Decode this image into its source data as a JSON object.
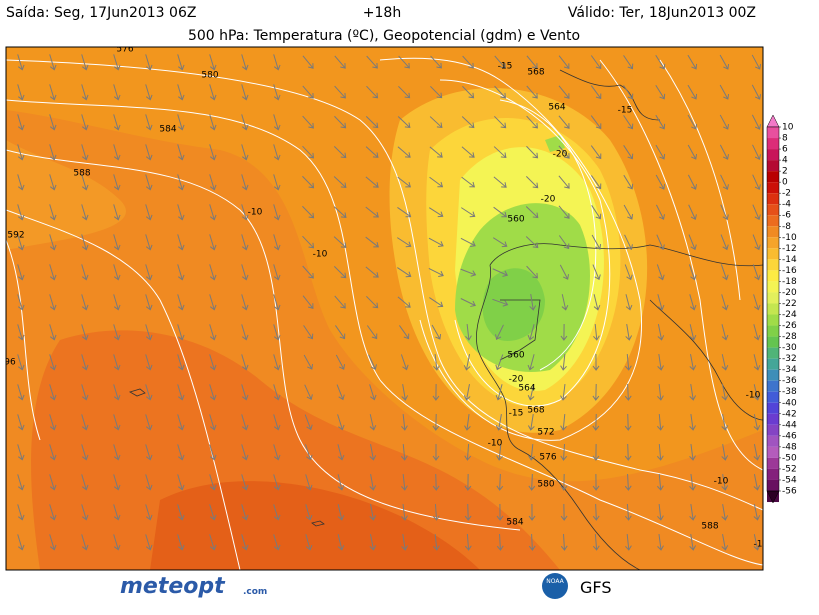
{
  "header": {
    "issued": "Saída: Seg, 17Jun2013 06Z",
    "lead": "+18h",
    "valid": "Válido: Ter, 18Jun2013 00Z",
    "title": "500 hPa: Temperatura (ºC), Geopotencial (gdm) e Vento"
  },
  "colorbar": {
    "labels": [
      10,
      8,
      6,
      4,
      2,
      0,
      -2,
      -4,
      -6,
      -8,
      -10,
      -12,
      -14,
      -16,
      -18,
      -20,
      -22,
      -24,
      -26,
      -28,
      -30,
      -32,
      -34,
      -36,
      -38,
      -40,
      -42,
      -44,
      -46,
      -48,
      -50,
      -52,
      -54,
      -56
    ],
    "colors": [
      "#f27ac8",
      "#e8509e",
      "#dc2c78",
      "#c8145a",
      "#b40a32",
      "#b80000",
      "#cc1008",
      "#dc3010",
      "#e65018",
      "#ec6c1e",
      "#f08a22",
      "#f5a42a",
      "#f9bc30",
      "#fcd63a",
      "#fdeb44",
      "#f4f454",
      "#e2f05c",
      "#c4e650",
      "#a0dc48",
      "#80d048",
      "#64c450",
      "#50b478",
      "#44a698",
      "#3e8eb8",
      "#3e74cc",
      "#425cd8",
      "#5244d8",
      "#6a3cd0",
      "#8444c4",
      "#a054c0",
      "#b45cbc",
      "#9c3898",
      "#84207c",
      "#681060",
      "#4c0844",
      "#2c0024"
    ]
  },
  "contour_labels": [
    "576",
    "580",
    "584",
    "588",
    "592",
    "-10",
    "-10",
    "-15",
    "568",
    "564",
    "-15",
    "-20",
    "-20",
    "560",
    "560",
    "-20",
    "564",
    "-15",
    "568",
    "-10",
    "572",
    "576",
    "580",
    "584",
    "588",
    "-10",
    "-10",
    "96",
    "-1"
  ],
  "footer": {
    "brand": "meteopt",
    "domain": ".com",
    "agency": "NOAA",
    "model": "GFS"
  }
}
